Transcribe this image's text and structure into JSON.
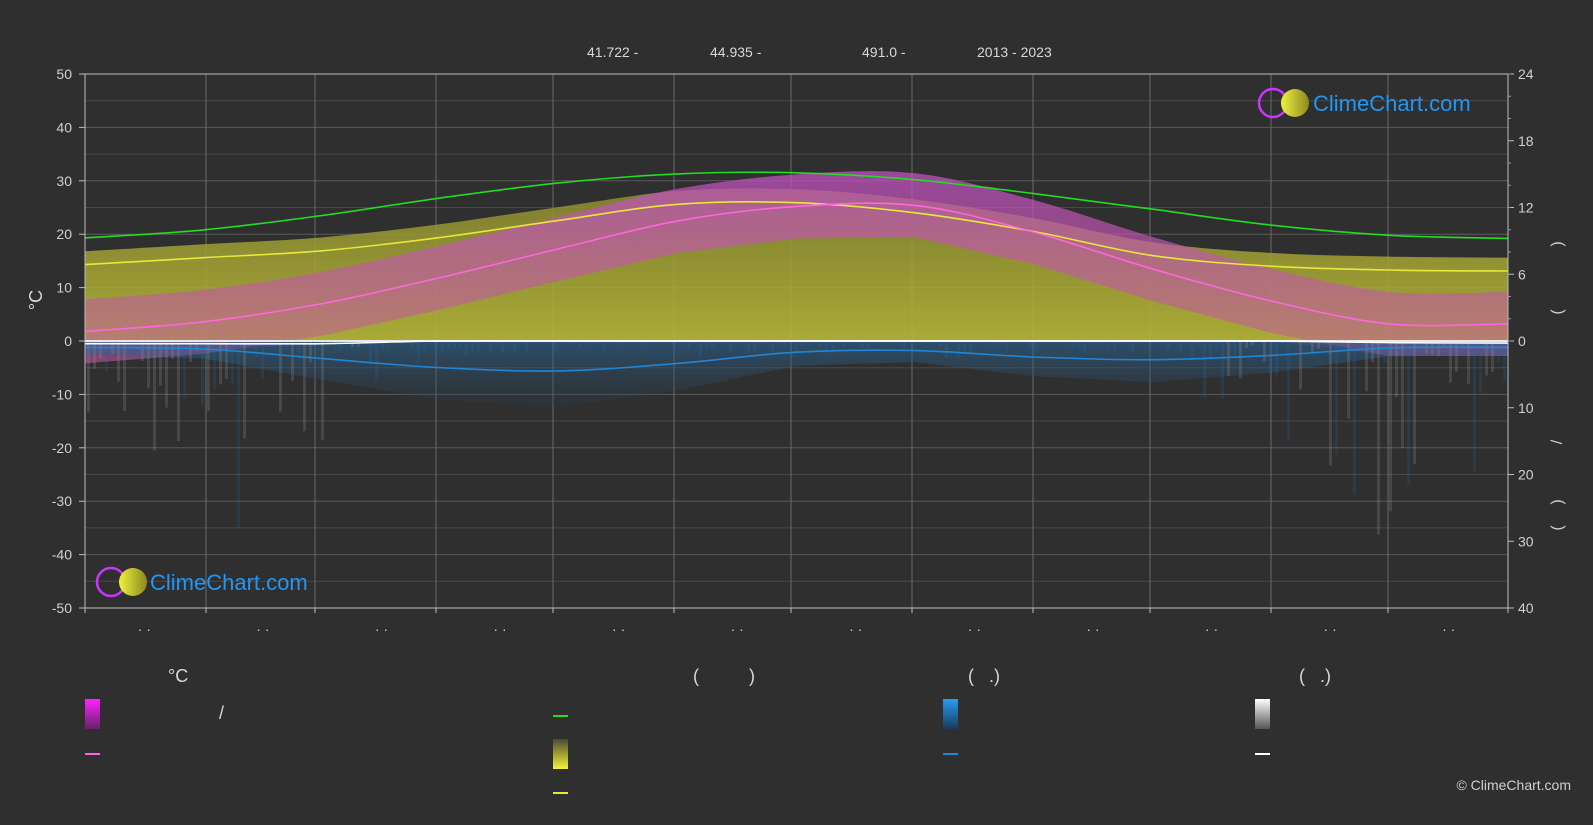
{
  "header": {
    "lat": "41.722 -",
    "lon": "44.935 -",
    "elev": "491.0 -",
    "years": "2013 - 2023"
  },
  "brand": {
    "name": "ClimeChart.com",
    "copyright": "© ClimeChart.com"
  },
  "legend": {
    "temp_title": "°C",
    "sun_title": "(          )",
    "rain_title": "(   .)",
    "snow_title": "(   .)",
    "slash": "/"
  },
  "colors": {
    "daylight": "#22dd22",
    "sunshine": "#e8e83a",
    "temp_mean": "#ff66dd",
    "rain": "#1f86d6",
    "snow": "#ffffff",
    "accent_text": "#2196f3"
  },
  "chart_data": {
    "type": "line",
    "xlabel": "",
    "ylabel": "°C",
    "ylim": [
      -50,
      50
    ],
    "yticks": [
      50,
      40,
      30,
      20,
      10,
      0,
      -10,
      -20,
      -30,
      -40,
      -50
    ],
    "y2_ticks_top": [
      24,
      18,
      12,
      6,
      0
    ],
    "y2_ticks_bottom": [
      10,
      20,
      30,
      40
    ],
    "x_tick_labels": [
      "· ·",
      "· ·",
      "· ·",
      "· ·",
      "· ·",
      "· ·",
      "· ·",
      "· ·",
      "· ·",
      "· ·",
      "· ·",
      "· ·"
    ],
    "right_axis_marks": [
      ")",
      "(",
      "/",
      ")",
      "("
    ],
    "series": [
      {
        "key": "daylight",
        "values": [
          19.3,
          20.8,
          23.5,
          26.8,
          29.6,
          31.3,
          31.5,
          30.2,
          27.6,
          24.7,
          21.7,
          19.8,
          19.2
        ]
      },
      {
        "key": "sunshine",
        "values": [
          14.3,
          15.6,
          16.9,
          19.4,
          22.6,
          25.6,
          25.9,
          24.0,
          20.5,
          16.0,
          14.0,
          13.3,
          13.1
        ]
      },
      {
        "key": "temp_mean",
        "values": [
          1.8,
          3.6,
          7.0,
          11.9,
          17.3,
          22.5,
          25.2,
          25.4,
          20.4,
          13.5,
          7.5,
          3.2,
          3.2
        ]
      },
      {
        "key": "rain",
        "values": [
          -1.2,
          -1.5,
          -3.3,
          -5.0,
          -5.6,
          -4.2,
          -2.1,
          -1.8,
          -3.0,
          -3.5,
          -2.7,
          -1.3,
          -1.2
        ]
      },
      {
        "key": "snow",
        "values": [
          -0.5,
          -0.5,
          -0.5,
          0.0,
          0.0,
          0.0,
          0.0,
          0.0,
          0.0,
          0.0,
          0.0,
          -0.3,
          -0.4
        ]
      }
    ]
  }
}
